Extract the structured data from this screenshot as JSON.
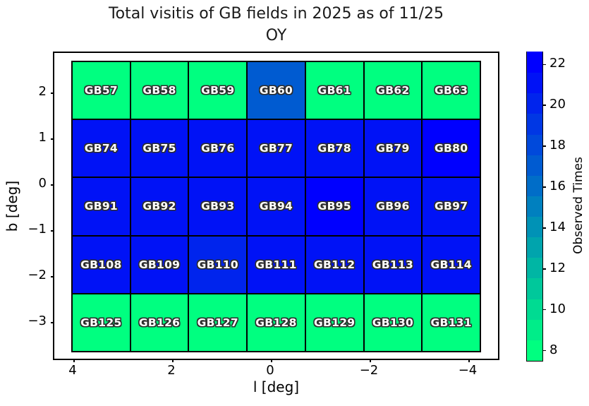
{
  "title_line1": "Total visitis of GB fields in 2025 as of 11/25",
  "title_line2": "OY",
  "chart_data": {
    "type": "heatmap",
    "title": "Total visitis of GB fields in 2025 as of 11/25 OY",
    "xlabel": "l [deg]",
    "ylabel": "b [deg]",
    "x_ticks": [
      4,
      2,
      0,
      -2,
      -4
    ],
    "x_tick_labels": [
      "4",
      "2",
      "0",
      "−2",
      "−4"
    ],
    "y_ticks": [
      2,
      1,
      0,
      -1,
      -2,
      -3
    ],
    "y_tick_labels": [
      "2",
      "1",
      "0",
      "−1",
      "−2",
      "−3"
    ],
    "x_range": [
      4.4,
      -4.6
    ],
    "y_range": [
      2.9,
      -3.85
    ],
    "grid_columns": 7,
    "grid_rows": 5,
    "colormap": {
      "name": "winter_r",
      "low_value": 8,
      "high_value": 22,
      "low_color": "#00FF80",
      "high_color": "#0000FF"
    },
    "colorbar": {
      "label": "Observed Times",
      "ticks": [
        8,
        10,
        12,
        14,
        16,
        18,
        20,
        22
      ],
      "tick_labels": [
        "8",
        "10",
        "12",
        "14",
        "16",
        "18",
        "20",
        "22"
      ],
      "scale_min": 7.5,
      "scale_max": 22.6,
      "bands": 15
    },
    "rows": [
      {
        "cells": [
          {
            "label": "GB57",
            "value": 8
          },
          {
            "label": "GB58",
            "value": 8
          },
          {
            "label": "GB59",
            "value": 8
          },
          {
            "label": "GB60",
            "value": 17
          },
          {
            "label": "GB61",
            "value": 8
          },
          {
            "label": "GB62",
            "value": 8
          },
          {
            "label": "GB63",
            "value": 8
          }
        ]
      },
      {
        "cells": [
          {
            "label": "GB74",
            "value": 21
          },
          {
            "label": "GB75",
            "value": 21
          },
          {
            "label": "GB76",
            "value": 21
          },
          {
            "label": "GB77",
            "value": 21
          },
          {
            "label": "GB78",
            "value": 21
          },
          {
            "label": "GB79",
            "value": 21
          },
          {
            "label": "GB80",
            "value": 22
          }
        ]
      },
      {
        "cells": [
          {
            "label": "GB91",
            "value": 21
          },
          {
            "label": "GB92",
            "value": 21
          },
          {
            "label": "GB93",
            "value": 21
          },
          {
            "label": "GB94",
            "value": 21
          },
          {
            "label": "GB95",
            "value": 22
          },
          {
            "label": "GB96",
            "value": 21
          },
          {
            "label": "GB97",
            "value": 21
          }
        ]
      },
      {
        "cells": [
          {
            "label": "GB108",
            "value": 21
          },
          {
            "label": "GB109",
            "value": 21
          },
          {
            "label": "GB110",
            "value": 20
          },
          {
            "label": "GB111",
            "value": 21
          },
          {
            "label": "GB112",
            "value": 21
          },
          {
            "label": "GB113",
            "value": 21
          },
          {
            "label": "GB114",
            "value": 21
          }
        ]
      },
      {
        "cells": [
          {
            "label": "GB125",
            "value": 8
          },
          {
            "label": "GB126",
            "value": 8
          },
          {
            "label": "GB127",
            "value": 8
          },
          {
            "label": "GB128",
            "value": 8
          },
          {
            "label": "GB129",
            "value": 8
          },
          {
            "label": "GB130",
            "value": 8
          },
          {
            "label": "GB131",
            "value": 8
          }
        ]
      }
    ]
  }
}
